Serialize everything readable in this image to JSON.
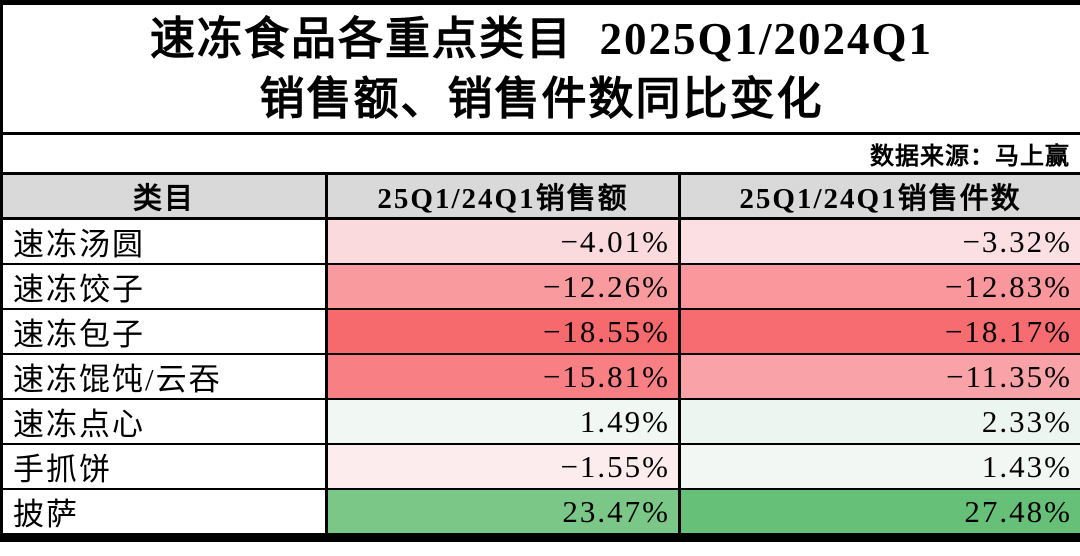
{
  "title": {
    "line1": "速冻食品各重点类目  2025Q1/2024Q1",
    "line2": "销售额、销售件数同比变化"
  },
  "source": "数据来源：马上赢",
  "table": {
    "header_bg": "#D9D9D9",
    "headers": {
      "category": "类目",
      "sales": "25Q1/24Q1销售额",
      "units": "25Q1/24Q1销售件数"
    },
    "rows": [
      {
        "category": "速冻汤圆",
        "sales": "−4.01%",
        "sales_bg": "#FBDADD",
        "units": "−3.32%",
        "units_bg": "#FBDFE2"
      },
      {
        "category": "速冻饺子",
        "sales": "−12.26%",
        "sales_bg": "#F99A9F",
        "units": "−12.83%",
        "units_bg": "#F9979C"
      },
      {
        "category": "速冻包子",
        "sales": "−18.55%",
        "sales_bg": "#F66A6E",
        "units": "−18.17%",
        "units_bg": "#F76C70"
      },
      {
        "category": "速冻馄饨/云吞",
        "sales": "−15.81%",
        "sales_bg": "#F87F83",
        "units": "−11.35%",
        "units_bg": "#F9A3A8"
      },
      {
        "category": "速冻点心",
        "sales": "1.49%",
        "sales_bg": "#F1F7F3",
        "units": "2.33%",
        "units_bg": "#EDF5F0"
      },
      {
        "category": "手抓饼",
        "sales": "−1.55%",
        "sales_bg": "#FCECEE",
        "units": "1.43%",
        "units_bg": "#F2F7F4"
      },
      {
        "category": "披萨",
        "sales": "23.47%",
        "sales_bg": "#7AC787",
        "units": "27.48%",
        "units_bg": "#66C077"
      }
    ]
  },
  "chart_data": {
    "type": "table",
    "title": "速冻食品各重点类目 2025Q1/2024Q1 销售额、销售件数同比变化",
    "source": "数据来源：马上赢",
    "categories": [
      "速冻汤圆",
      "速冻饺子",
      "速冻包子",
      "速冻馄饨/云吞",
      "速冻点心",
      "手抓饼",
      "披萨"
    ],
    "series": [
      {
        "name": "25Q1/24Q1销售额",
        "unit": "%",
        "values": [
          -4.01,
          -12.26,
          -18.55,
          -15.81,
          1.49,
          -1.55,
          23.47
        ]
      },
      {
        "name": "25Q1/24Q1销售件数",
        "unit": "%",
        "values": [
          -3.32,
          -12.83,
          -18.17,
          -11.35,
          2.33,
          1.43,
          27.48
        ]
      }
    ],
    "color_scale": {
      "min_negative": "#F8696B",
      "neutral": "#FCFCFF",
      "max_positive": "#63BE7B"
    }
  }
}
